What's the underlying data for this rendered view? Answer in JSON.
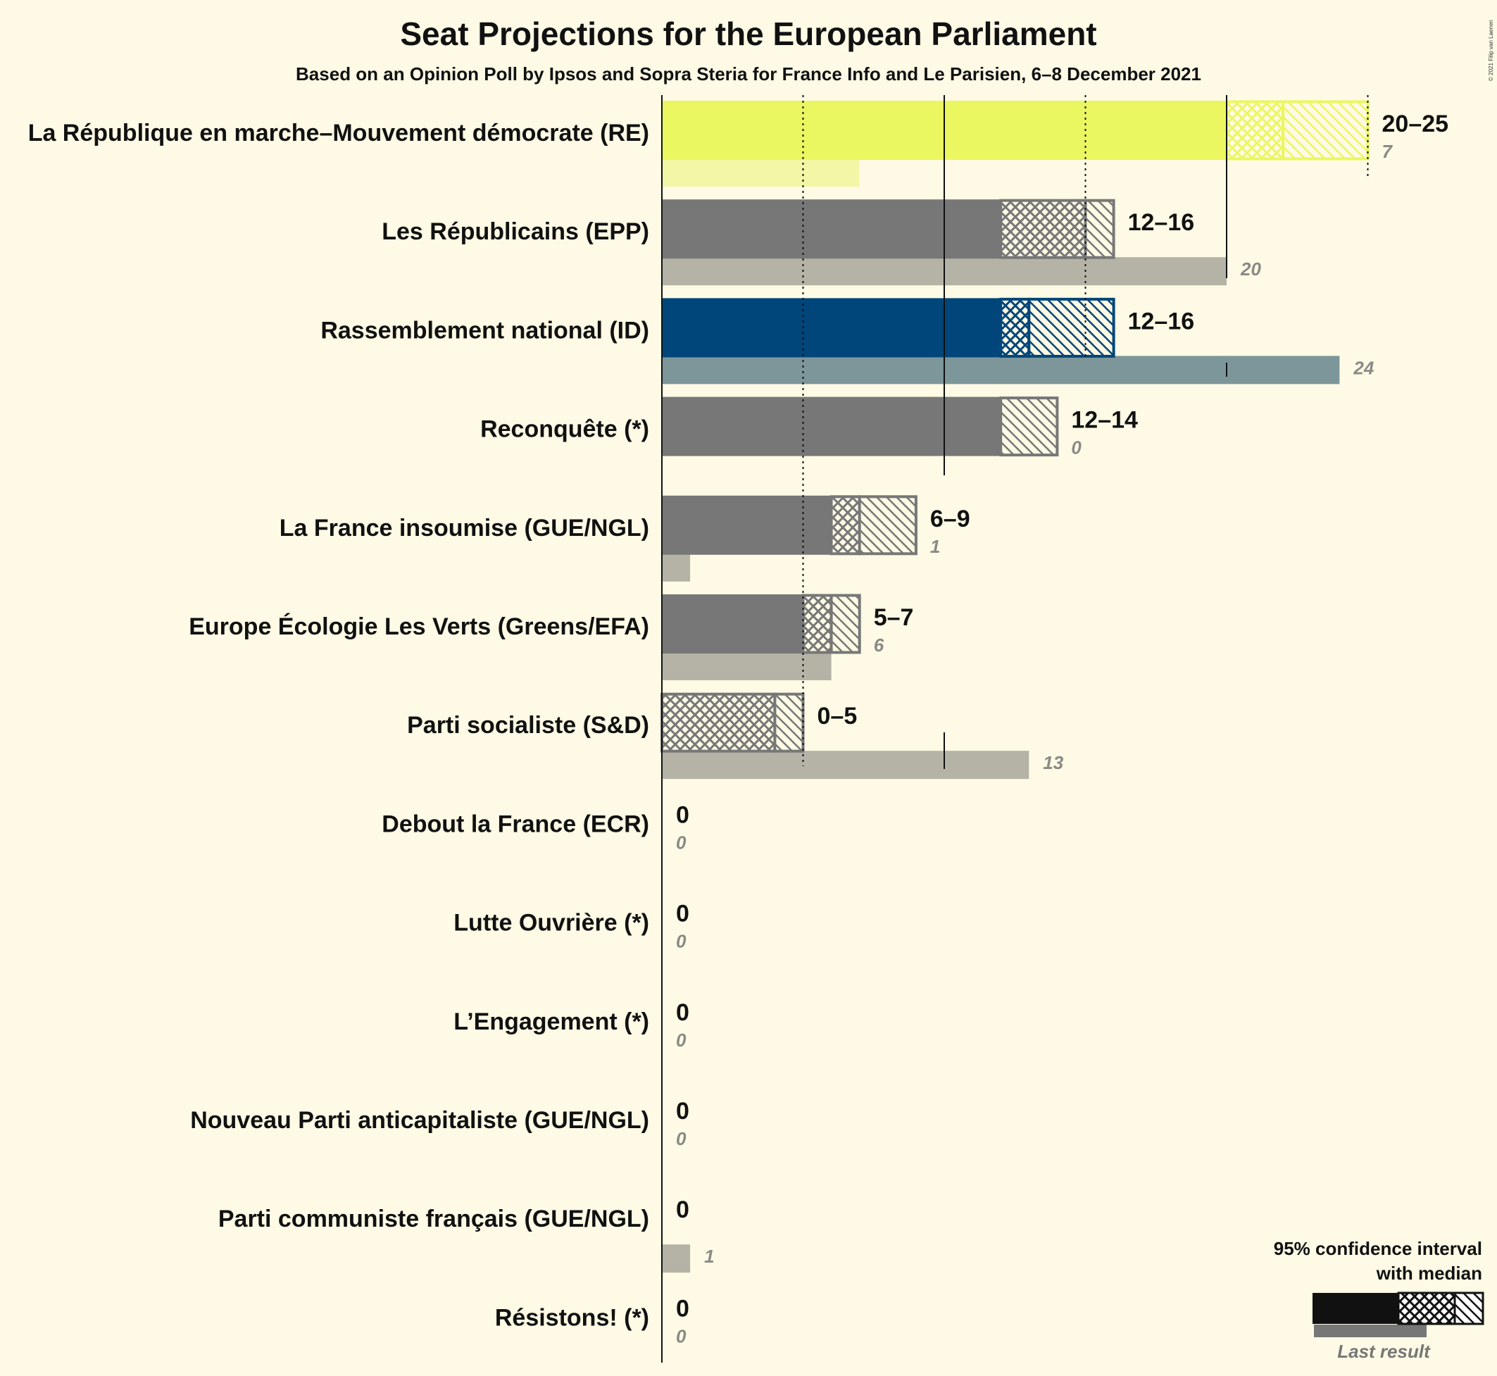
{
  "title": "Seat Projections for the European Parliament",
  "subtitle": "Based on an Opinion Poll by Ipsos and Sopra Steria for France Info and Le Parisien, 6–8 December 2021",
  "copyright": "© 2021 Filip van Laenen",
  "legend": {
    "line1": "95% confidence interval",
    "line2": "with median",
    "last_result": "Last result"
  },
  "colors": {
    "background": "#fefae5",
    "re": "#ebf760",
    "re_last": "#f2f7a6",
    "rn": "#00467a",
    "rn_last": "#7d969a",
    "grey": "#777777",
    "grey_last": "#b5b3a6"
  },
  "chart_data": {
    "type": "bar",
    "orientation": "horizontal",
    "title": "Seat Projections for the European Parliament",
    "subtitle": "Based on an Opinion Poll by Ipsos and Sopra Steria for France Info and Le Parisien, 6–8 December 2021",
    "xlim": [
      0,
      25
    ],
    "gridlines": [
      5,
      10,
      15,
      20,
      25
    ],
    "parties": [
      {
        "name": "La République en marche–Mouvement démocrate (RE)",
        "low": 20,
        "median": 22,
        "high": 25,
        "range_label": "20–25",
        "last": 7,
        "last_label": "7",
        "color": "re"
      },
      {
        "name": "Les Républicains (EPP)",
        "low": 12,
        "median": 15,
        "high": 16,
        "range_label": "12–16",
        "last": 20,
        "last_label": "20",
        "color": "grey"
      },
      {
        "name": "Rassemblement national (ID)",
        "low": 12,
        "median": 13,
        "high": 16,
        "range_label": "12–16",
        "last": 24,
        "last_label": "24",
        "color": "rn"
      },
      {
        "name": "Reconquête (*)",
        "low": 12,
        "median": 12,
        "high": 14,
        "range_label": "12–14",
        "last": 0,
        "last_label": "0",
        "color": "grey"
      },
      {
        "name": "La France insoumise (GUE/NGL)",
        "low": 6,
        "median": 7,
        "high": 9,
        "range_label": "6–9",
        "last": 1,
        "last_label": "1",
        "color": "grey"
      },
      {
        "name": "Europe Écologie Les Verts (Greens/EFA)",
        "low": 5,
        "median": 6,
        "high": 7,
        "range_label": "5–7",
        "last": 6,
        "last_label": "6",
        "color": "grey"
      },
      {
        "name": "Parti socialiste (S&D)",
        "low": 0,
        "median": 4,
        "high": 5,
        "range_label": "0–5",
        "last": 13,
        "last_label": "13",
        "color": "grey"
      },
      {
        "name": "Debout la France (ECR)",
        "low": 0,
        "median": 0,
        "high": 0,
        "range_label": "0",
        "last": 0,
        "last_label": "0",
        "color": "grey"
      },
      {
        "name": "Lutte Ouvrière (*)",
        "low": 0,
        "median": 0,
        "high": 0,
        "range_label": "0",
        "last": 0,
        "last_label": "0",
        "color": "grey"
      },
      {
        "name": "L’Engagement (*)",
        "low": 0,
        "median": 0,
        "high": 0,
        "range_label": "0",
        "last": 0,
        "last_label": "0",
        "color": "grey"
      },
      {
        "name": "Nouveau Parti anticapitaliste (GUE/NGL)",
        "low": 0,
        "median": 0,
        "high": 0,
        "range_label": "0",
        "last": 0,
        "last_label": "0",
        "color": "grey"
      },
      {
        "name": "Parti communiste français (GUE/NGL)",
        "low": 0,
        "median": 0,
        "high": 0,
        "range_label": "0",
        "last": 1,
        "last_label": "1",
        "color": "grey"
      },
      {
        "name": "Résistons! (*)",
        "low": 0,
        "median": 0,
        "high": 0,
        "range_label": "0",
        "last": 0,
        "last_label": "0",
        "color": "grey"
      }
    ]
  }
}
